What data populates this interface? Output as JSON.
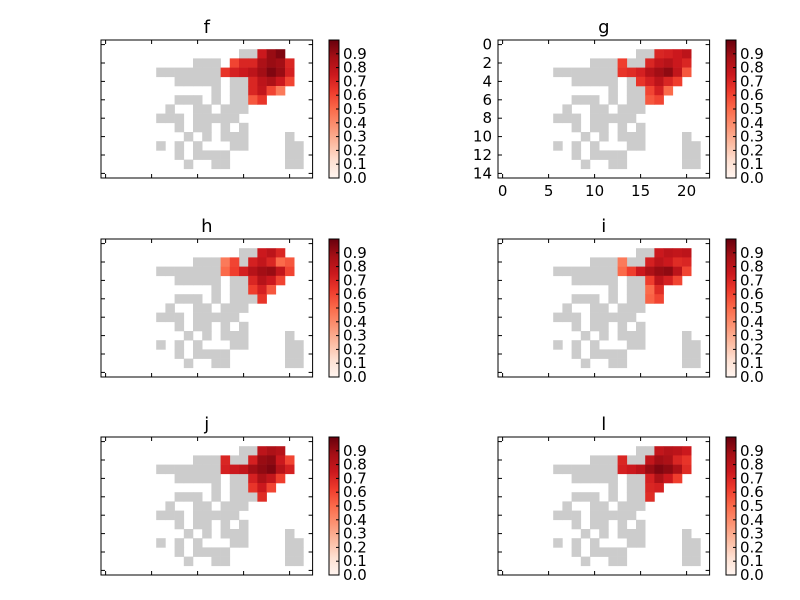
{
  "chart_data": {
    "type": "heatmap",
    "grid": {
      "rows": 15,
      "cols": 23
    },
    "colormap": {
      "name": "Reds",
      "background_color": "#cccccc",
      "stops": [
        "#fff5f0",
        "#fee0d2",
        "#fcbba1",
        "#fc9272",
        "#fb6a4a",
        "#ef3b2c",
        "#cb181d",
        "#a50f15",
        "#67000d"
      ]
    },
    "colorbar": {
      "range": [
        0.0,
        1.0
      ],
      "ticks": [
        0.0,
        0.1,
        0.2,
        0.3,
        0.4,
        0.5,
        0.6,
        0.7,
        0.8,
        0.9
      ],
      "tick_labels": [
        "0.0",
        "0.1",
        "0.2",
        "0.3",
        "0.4",
        "0.5",
        "0.6",
        "0.7",
        "0.8",
        "0.9"
      ]
    },
    "land_mask": [
      ".......................",
      "...............**......",
      "..........***.****.....",
      "......*******.***......",
      "........*****.***......",
      "............*.***......",
      "........***.*.***......",
      ".......*..**.***.......",
      "......***.*****........",
      "........*.**.*.*.......",
      ".........*.*.***....*..",
      "......*.*.*...**....**.",
      "........*.****......**.",
      ".........*..**......**.",
      "......................."
    ],
    "panels": [
      {
        "id": "f",
        "title": "f",
        "show_ticks": false,
        "cells": [
          [
            1,
            17,
            0.75
          ],
          [
            1,
            18,
            0.9
          ],
          [
            1,
            19,
            0.95
          ],
          [
            2,
            14,
            0.6
          ],
          [
            2,
            15,
            0.7
          ],
          [
            2,
            16,
            0.7
          ],
          [
            2,
            17,
            0.85
          ],
          [
            2,
            18,
            0.9
          ],
          [
            2,
            19,
            0.88
          ],
          [
            2,
            20,
            0.7
          ],
          [
            3,
            13,
            0.65
          ],
          [
            3,
            14,
            0.72
          ],
          [
            3,
            15,
            0.75
          ],
          [
            3,
            16,
            0.8
          ],
          [
            3,
            17,
            0.88
          ],
          [
            3,
            18,
            0.95
          ],
          [
            3,
            19,
            0.9
          ],
          [
            3,
            20,
            0.72
          ],
          [
            4,
            16,
            0.7
          ],
          [
            4,
            17,
            0.8
          ],
          [
            4,
            18,
            0.85
          ],
          [
            4,
            19,
            0.75
          ],
          [
            4,
            20,
            0.6
          ],
          [
            5,
            16,
            0.7
          ],
          [
            5,
            17,
            0.78
          ],
          [
            5,
            18,
            0.6
          ],
          [
            5,
            19,
            0.45
          ],
          [
            6,
            16,
            0.55
          ],
          [
            6,
            17,
            0.65
          ]
        ]
      },
      {
        "id": "g",
        "title": "g",
        "show_ticks": true,
        "x_ticks": [
          0,
          5,
          10,
          15,
          20
        ],
        "y_ticks": [
          0,
          2,
          4,
          6,
          8,
          10,
          12,
          14
        ],
        "cells": [
          [
            1,
            17,
            0.7
          ],
          [
            1,
            18,
            0.72
          ],
          [
            1,
            19,
            0.75
          ],
          [
            1,
            20,
            0.8
          ],
          [
            2,
            13,
            0.62
          ],
          [
            2,
            16,
            0.7
          ],
          [
            2,
            17,
            0.78
          ],
          [
            2,
            18,
            0.82
          ],
          [
            2,
            19,
            0.75
          ],
          [
            2,
            20,
            0.7
          ],
          [
            3,
            13,
            0.65
          ],
          [
            3,
            14,
            0.68
          ],
          [
            3,
            15,
            0.72
          ],
          [
            3,
            16,
            0.82
          ],
          [
            3,
            17,
            0.88
          ],
          [
            3,
            18,
            0.92
          ],
          [
            3,
            19,
            0.78
          ],
          [
            3,
            20,
            0.55
          ],
          [
            4,
            15,
            0.65
          ],
          [
            4,
            16,
            0.72
          ],
          [
            4,
            17,
            0.8
          ],
          [
            4,
            18,
            0.7
          ],
          [
            4,
            19,
            0.62
          ],
          [
            5,
            16,
            0.6
          ],
          [
            5,
            17,
            0.72
          ],
          [
            5,
            18,
            0.5
          ],
          [
            6,
            16,
            0.55
          ],
          [
            6,
            17,
            0.6
          ]
        ]
      },
      {
        "id": "h",
        "title": "h",
        "show_ticks": false,
        "cells": [
          [
            1,
            17,
            0.75
          ],
          [
            1,
            18,
            0.8
          ],
          [
            1,
            19,
            0.7
          ],
          [
            2,
            13,
            0.45
          ],
          [
            2,
            14,
            0.6
          ],
          [
            2,
            16,
            0.72
          ],
          [
            2,
            17,
            0.78
          ],
          [
            2,
            18,
            0.7
          ],
          [
            2,
            19,
            0.5
          ],
          [
            2,
            20,
            0.55
          ],
          [
            3,
            13,
            0.5
          ],
          [
            3,
            14,
            0.62
          ],
          [
            3,
            15,
            0.72
          ],
          [
            3,
            16,
            0.82
          ],
          [
            3,
            17,
            0.88
          ],
          [
            3,
            18,
            0.9
          ],
          [
            3,
            19,
            0.78
          ],
          [
            3,
            20,
            0.6
          ],
          [
            4,
            16,
            0.7
          ],
          [
            4,
            17,
            0.82
          ],
          [
            4,
            18,
            0.75
          ],
          [
            4,
            19,
            0.6
          ],
          [
            5,
            16,
            0.62
          ],
          [
            5,
            17,
            0.72
          ],
          [
            5,
            18,
            0.55
          ],
          [
            6,
            17,
            0.65
          ]
        ]
      },
      {
        "id": "i",
        "title": "i",
        "show_ticks": false,
        "cells": [
          [
            1,
            17,
            0.75
          ],
          [
            1,
            18,
            0.8
          ],
          [
            1,
            19,
            0.78
          ],
          [
            1,
            20,
            0.8
          ],
          [
            2,
            13,
            0.45
          ],
          [
            2,
            16,
            0.72
          ],
          [
            2,
            17,
            0.8
          ],
          [
            2,
            18,
            0.75
          ],
          [
            2,
            19,
            0.68
          ],
          [
            2,
            20,
            0.7
          ],
          [
            3,
            13,
            0.5
          ],
          [
            3,
            14,
            0.62
          ],
          [
            3,
            15,
            0.75
          ],
          [
            3,
            16,
            0.85
          ],
          [
            3,
            17,
            0.9
          ],
          [
            3,
            18,
            0.92
          ],
          [
            3,
            19,
            0.8
          ],
          [
            3,
            20,
            0.6
          ],
          [
            4,
            16,
            0.62
          ],
          [
            4,
            17,
            0.8
          ],
          [
            4,
            18,
            0.72
          ],
          [
            4,
            19,
            0.6
          ],
          [
            5,
            16,
            0.5
          ],
          [
            5,
            17,
            0.68
          ],
          [
            6,
            16,
            0.52
          ],
          [
            6,
            17,
            0.6
          ]
        ]
      },
      {
        "id": "j",
        "title": "j",
        "show_ticks": false,
        "cells": [
          [
            1,
            17,
            0.8
          ],
          [
            1,
            18,
            0.85
          ],
          [
            1,
            19,
            0.82
          ],
          [
            2,
            13,
            0.7
          ],
          [
            2,
            16,
            0.72
          ],
          [
            2,
            17,
            0.9
          ],
          [
            2,
            18,
            0.92
          ],
          [
            2,
            19,
            0.75
          ],
          [
            2,
            20,
            0.6
          ],
          [
            3,
            13,
            0.72
          ],
          [
            3,
            14,
            0.75
          ],
          [
            3,
            15,
            0.78
          ],
          [
            3,
            16,
            0.88
          ],
          [
            3,
            17,
            0.92
          ],
          [
            3,
            18,
            0.95
          ],
          [
            3,
            19,
            0.82
          ],
          [
            3,
            20,
            0.72
          ],
          [
            4,
            16,
            0.72
          ],
          [
            4,
            17,
            0.85
          ],
          [
            4,
            18,
            0.78
          ],
          [
            4,
            19,
            0.62
          ],
          [
            5,
            16,
            0.65
          ],
          [
            5,
            17,
            0.75
          ],
          [
            5,
            18,
            0.6
          ],
          [
            6,
            17,
            0.68
          ]
        ]
      },
      {
        "id": "l",
        "title": "l",
        "show_ticks": false,
        "cells": [
          [
            1,
            17,
            0.78
          ],
          [
            1,
            18,
            0.82
          ],
          [
            1,
            19,
            0.8
          ],
          [
            1,
            20,
            0.75
          ],
          [
            2,
            13,
            0.7
          ],
          [
            2,
            16,
            0.78
          ],
          [
            2,
            17,
            0.88
          ],
          [
            2,
            18,
            0.85
          ],
          [
            2,
            19,
            0.7
          ],
          [
            2,
            20,
            0.65
          ],
          [
            3,
            13,
            0.72
          ],
          [
            3,
            14,
            0.75
          ],
          [
            3,
            15,
            0.8
          ],
          [
            3,
            16,
            0.9
          ],
          [
            3,
            17,
            0.95
          ],
          [
            3,
            18,
            0.92
          ],
          [
            3,
            19,
            0.85
          ],
          [
            3,
            20,
            0.68
          ],
          [
            4,
            16,
            0.72
          ],
          [
            4,
            17,
            0.85
          ],
          [
            4,
            18,
            0.75
          ],
          [
            4,
            19,
            0.62
          ],
          [
            5,
            16,
            0.7
          ],
          [
            5,
            17,
            0.72
          ],
          [
            6,
            16,
            0.68
          ]
        ]
      }
    ]
  }
}
